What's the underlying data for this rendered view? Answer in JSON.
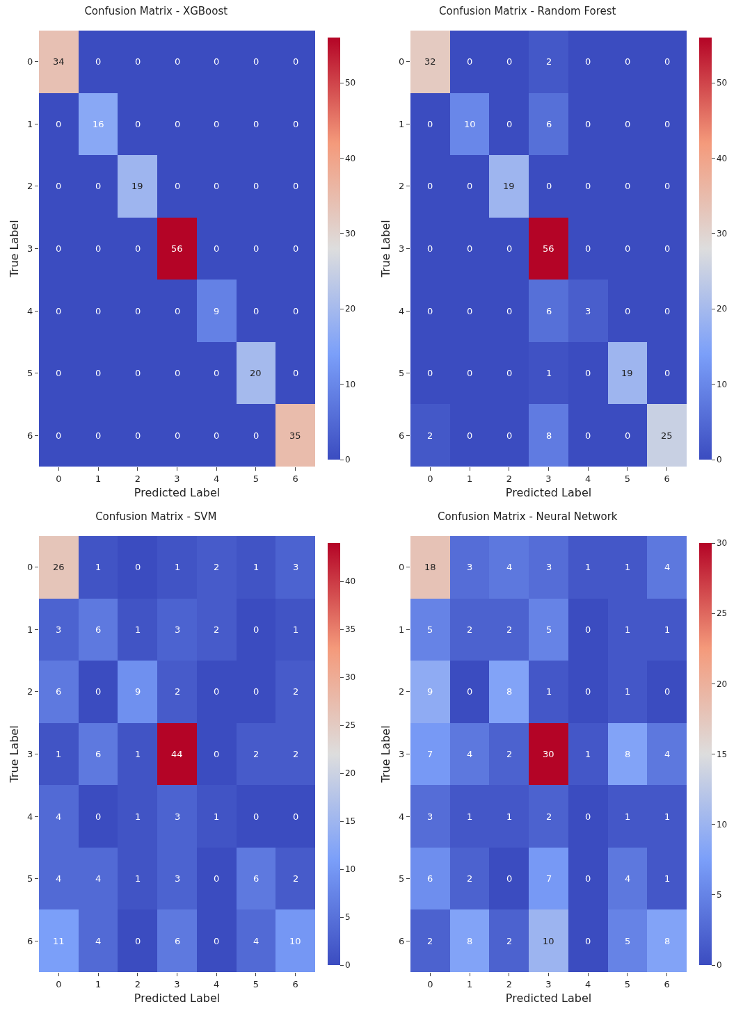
{
  "chart_data": [
    {
      "type": "heatmap",
      "title": "Confusion Matrix - XGBoost",
      "xlabel": "Predicted Label",
      "ylabel": "True Label",
      "categories": [
        "0",
        "1",
        "2",
        "3",
        "4",
        "5",
        "6"
      ],
      "y_categories": [
        "0",
        "1",
        "2",
        "3",
        "4",
        "5",
        "6"
      ],
      "cells": [
        [
          34,
          0,
          0,
          0,
          0,
          0,
          0
        ],
        [
          0,
          16,
          0,
          0,
          0,
          0,
          0
        ],
        [
          0,
          0,
          19,
          0,
          0,
          0,
          0
        ],
        [
          0,
          0,
          0,
          56,
          0,
          0,
          0
        ],
        [
          0,
          0,
          0,
          0,
          9,
          0,
          0
        ],
        [
          0,
          0,
          0,
          0,
          0,
          20,
          0
        ],
        [
          0,
          0,
          0,
          0,
          0,
          0,
          35
        ]
      ],
      "clim": [
        0,
        56
      ],
      "cticks": [
        0,
        10,
        20,
        30,
        40,
        50
      ],
      "data_labels": true
    },
    {
      "type": "heatmap",
      "title": "Confusion Matrix - Random Forest",
      "xlabel": "Predicted Label",
      "ylabel": "True Label",
      "categories": [
        "0",
        "1",
        "2",
        "3",
        "4",
        "5",
        "6"
      ],
      "y_categories": [
        "0",
        "1",
        "2",
        "3",
        "4",
        "5",
        "6"
      ],
      "cells": [
        [
          32,
          0,
          0,
          2,
          0,
          0,
          0
        ],
        [
          0,
          10,
          0,
          6,
          0,
          0,
          0
        ],
        [
          0,
          0,
          19,
          0,
          0,
          0,
          0
        ],
        [
          0,
          0,
          0,
          56,
          0,
          0,
          0
        ],
        [
          0,
          0,
          0,
          6,
          3,
          0,
          0
        ],
        [
          0,
          0,
          0,
          1,
          0,
          19,
          0
        ],
        [
          2,
          0,
          0,
          8,
          0,
          0,
          25
        ]
      ],
      "clim": [
        0,
        56
      ],
      "cticks": [
        0,
        10,
        20,
        30,
        40,
        50
      ],
      "data_labels": true
    },
    {
      "type": "heatmap",
      "title": "Confusion Matrix - SVM",
      "xlabel": "Predicted Label",
      "ylabel": "True Label",
      "categories": [
        "0",
        "1",
        "2",
        "3",
        "4",
        "5",
        "6"
      ],
      "y_categories": [
        "0",
        "1",
        "2",
        "3",
        "4",
        "5",
        "6"
      ],
      "cells": [
        [
          26,
          1,
          0,
          1,
          2,
          1,
          3
        ],
        [
          3,
          6,
          1,
          3,
          2,
          0,
          1
        ],
        [
          6,
          0,
          9,
          2,
          0,
          0,
          2
        ],
        [
          1,
          6,
          1,
          44,
          0,
          2,
          2
        ],
        [
          4,
          0,
          1,
          3,
          1,
          0,
          0
        ],
        [
          4,
          4,
          1,
          3,
          0,
          6,
          2
        ],
        [
          11,
          4,
          0,
          6,
          0,
          4,
          10
        ]
      ],
      "clim": [
        0,
        44
      ],
      "cticks": [
        0,
        5,
        10,
        15,
        20,
        25,
        30,
        35,
        40
      ],
      "data_labels": true
    },
    {
      "type": "heatmap",
      "title": "Confusion Matrix - Neural Network",
      "xlabel": "Predicted Label",
      "ylabel": "True Label",
      "categories": [
        "0",
        "1",
        "2",
        "3",
        "4",
        "5",
        "6"
      ],
      "y_categories": [
        "0",
        "1",
        "2",
        "3",
        "4",
        "5",
        "6"
      ],
      "cells": [
        [
          18,
          3,
          4,
          3,
          1,
          1,
          4
        ],
        [
          5,
          2,
          2,
          5,
          0,
          1,
          1
        ],
        [
          9,
          0,
          8,
          1,
          0,
          1,
          0
        ],
        [
          7,
          4,
          2,
          30,
          1,
          8,
          4
        ],
        [
          3,
          1,
          1,
          2,
          0,
          1,
          1
        ],
        [
          6,
          2,
          0,
          7,
          0,
          4,
          1
        ],
        [
          2,
          8,
          2,
          10,
          0,
          5,
          8
        ]
      ],
      "clim": [
        0,
        30
      ],
      "cticks": [
        0,
        5,
        10,
        15,
        20,
        25,
        30
      ],
      "data_labels": true
    }
  ]
}
